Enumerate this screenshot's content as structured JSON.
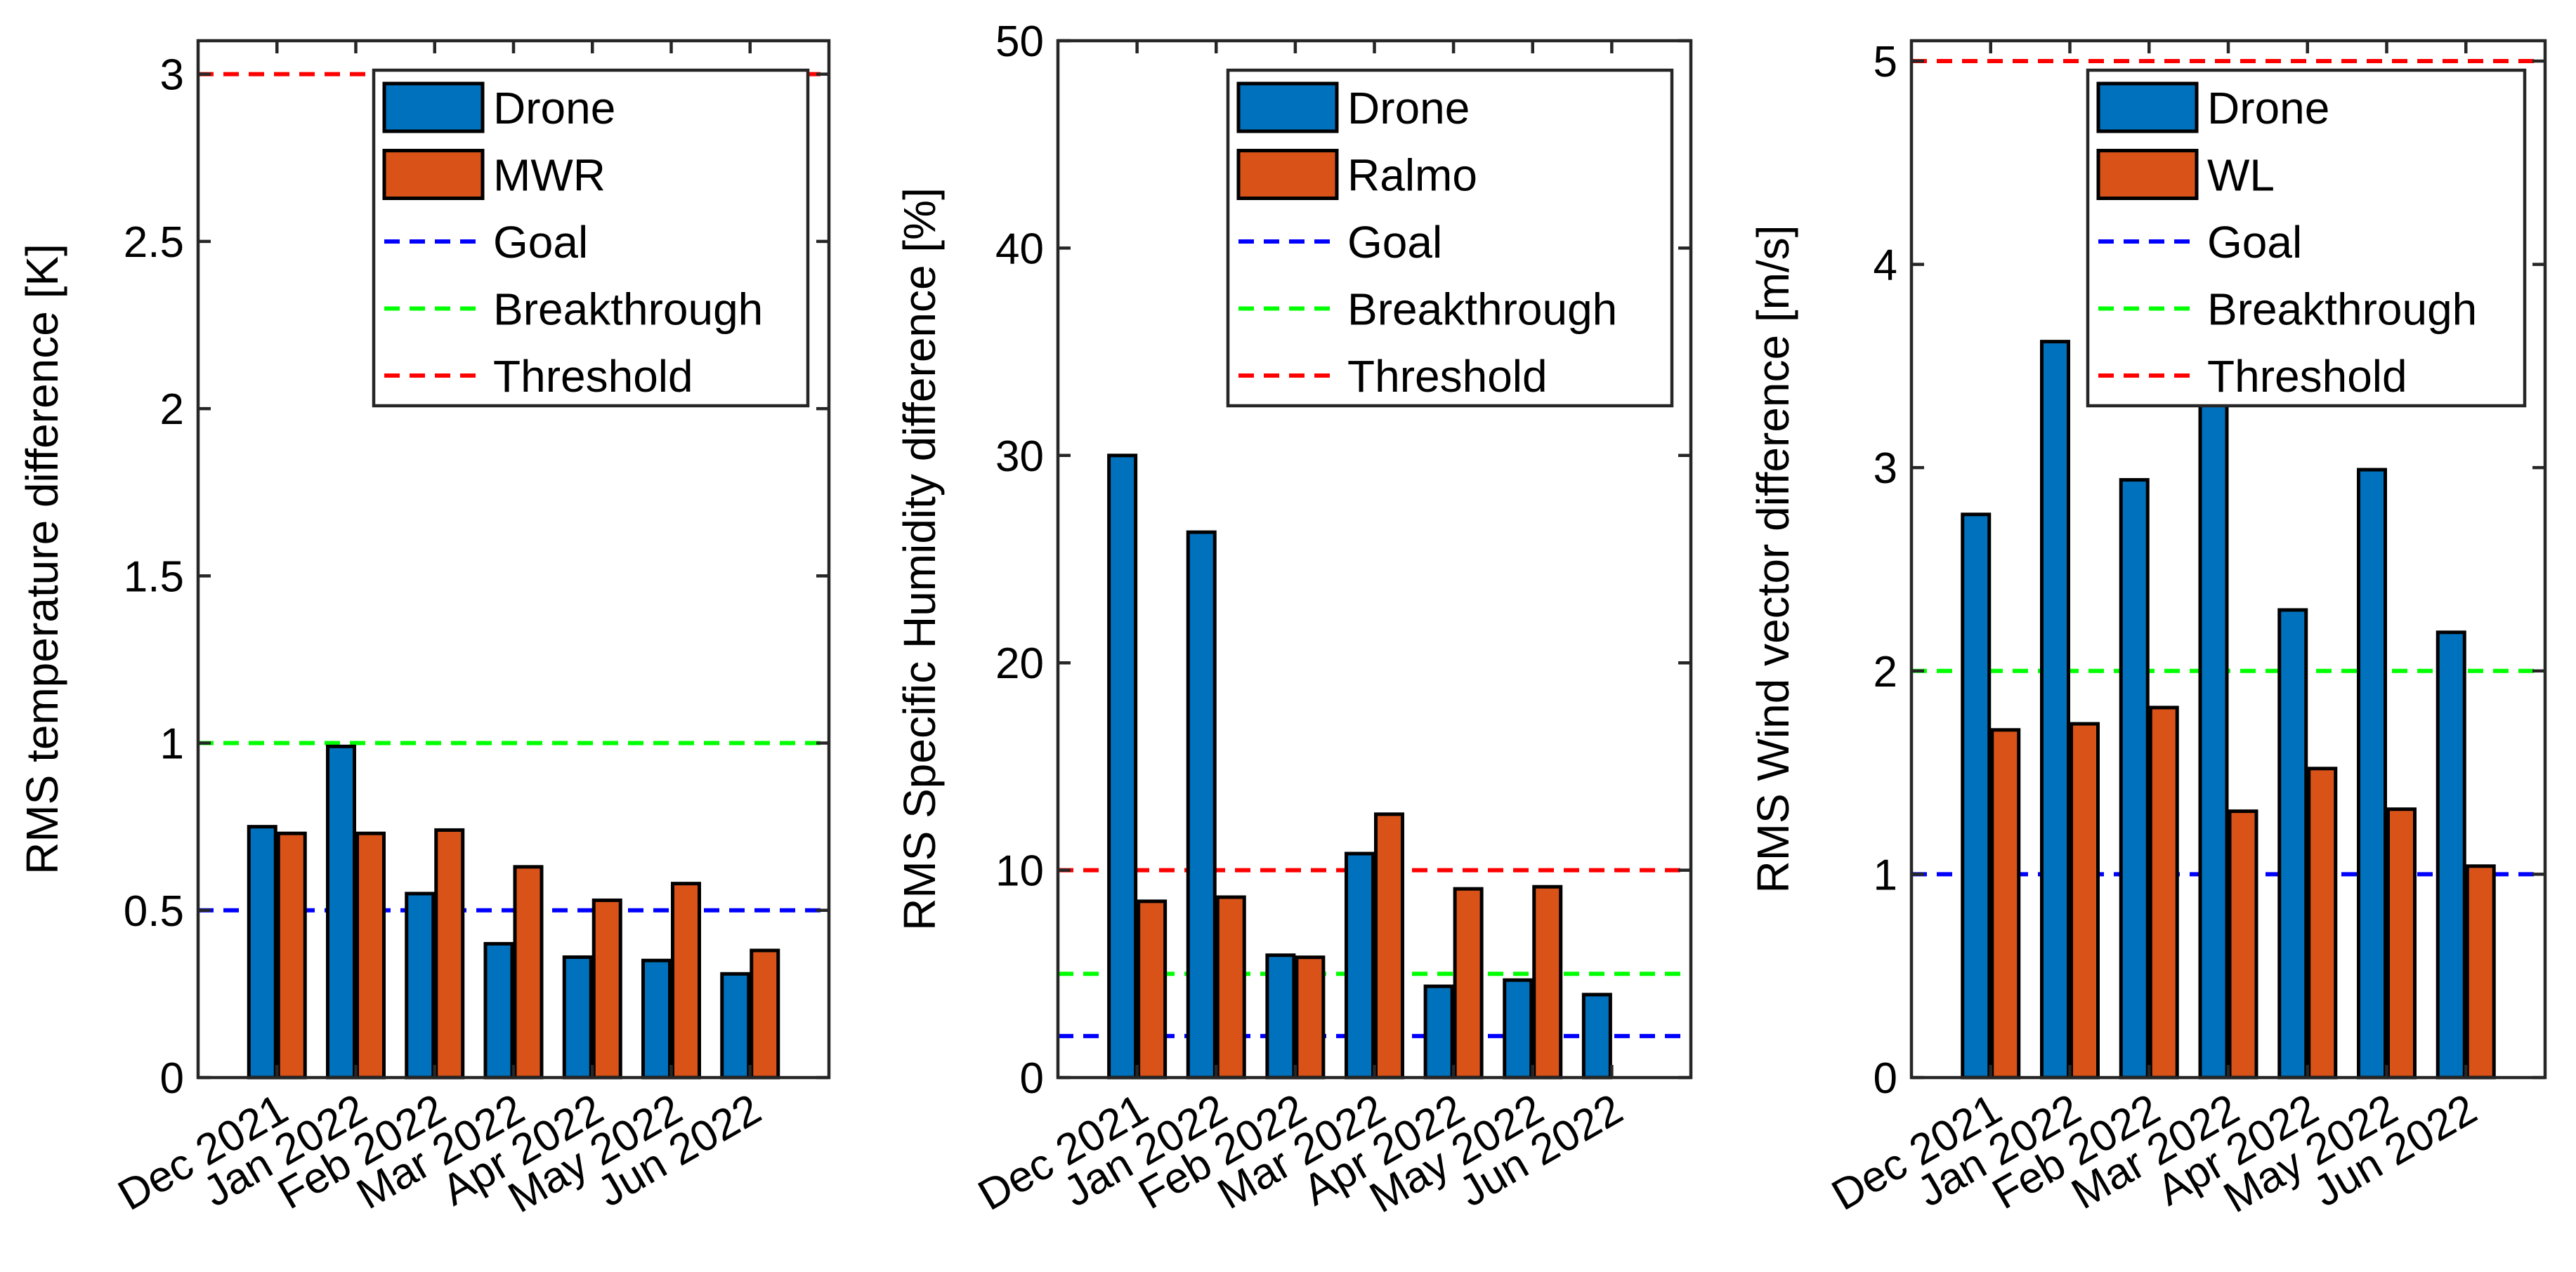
{
  "chart_data": [
    {
      "type": "bar",
      "categories": [
        "Dec 2021",
        "Jan 2022",
        "Feb 2022",
        "Mar 2022",
        "Apr 2022",
        "May 2022",
        "Jun 2022"
      ],
      "series": [
        {
          "name": "Drone",
          "color": "#0072BD",
          "values": [
            0.75,
            0.99,
            0.55,
            0.4,
            0.36,
            0.35,
            0.31
          ]
        },
        {
          "name": "MWR",
          "color": "#D95319",
          "values": [
            0.73,
            0.73,
            0.74,
            0.63,
            0.53,
            0.58,
            0.38
          ]
        }
      ],
      "reference_lines": [
        {
          "name": "Goal",
          "color": "#0000FF",
          "value": 0.5
        },
        {
          "name": "Breakthrough",
          "color": "#00FF00",
          "value": 1.0
        },
        {
          "name": "Threshold",
          "color": "#FF0000",
          "value": 3.0
        }
      ],
      "ylabel": "RMS temperature difference [K]",
      "ylim": [
        0,
        3.1
      ],
      "yticks": [
        0,
        0.5,
        1,
        1.5,
        2,
        2.5,
        3
      ],
      "ytick_labels": [
        "0",
        "0.5",
        "1",
        "1.5",
        "2",
        "2.5",
        "3"
      ],
      "legend": [
        "Drone",
        "MWR",
        "Goal",
        "Breakthrough",
        "Threshold"
      ],
      "legend_position": "top-right"
    },
    {
      "type": "bar",
      "categories": [
        "Dec 2021",
        "Jan 2022",
        "Feb 2022",
        "Mar 2022",
        "Apr 2022",
        "May 2022",
        "Jun 2022"
      ],
      "series": [
        {
          "name": "Drone",
          "color": "#0072BD",
          "values": [
            30.0,
            26.3,
            5.9,
            10.8,
            4.4,
            4.7,
            4.0
          ]
        },
        {
          "name": "Ralmo",
          "color": "#D95319",
          "values": [
            8.5,
            8.7,
            5.8,
            12.7,
            9.1,
            9.2,
            null
          ]
        }
      ],
      "reference_lines": [
        {
          "name": "Goal",
          "color": "#0000FF",
          "value": 2
        },
        {
          "name": "Breakthrough",
          "color": "#00FF00",
          "value": 5
        },
        {
          "name": "Threshold",
          "color": "#FF0000",
          "value": 10
        }
      ],
      "ylabel": "RMS Specific Humidity difference [%]",
      "ylim": [
        0,
        50
      ],
      "yticks": [
        0,
        10,
        20,
        30,
        40,
        50
      ],
      "ytick_labels": [
        "0",
        "10",
        "20",
        "30",
        "40",
        "50"
      ],
      "legend": [
        "Drone",
        "Ralmo",
        "Goal",
        "Breakthrough",
        "Threshold"
      ],
      "legend_position": "top-right"
    },
    {
      "type": "bar",
      "categories": [
        "Dec 2021",
        "Jan 2022",
        "Feb 2022",
        "Mar 2022",
        "Apr 2022",
        "May 2022",
        "Jun 2022"
      ],
      "series": [
        {
          "name": "Drone",
          "color": "#0072BD",
          "values": [
            2.77,
            3.62,
            2.94,
            3.4,
            2.3,
            2.99,
            2.19
          ]
        },
        {
          "name": "WL",
          "color": "#D95319",
          "values": [
            1.71,
            1.74,
            1.82,
            1.31,
            1.52,
            1.32,
            1.04
          ]
        }
      ],
      "reference_lines": [
        {
          "name": "Goal",
          "color": "#0000FF",
          "value": 1
        },
        {
          "name": "Breakthrough",
          "color": "#00FF00",
          "value": 2
        },
        {
          "name": "Threshold",
          "color": "#FF0000",
          "value": 5
        }
      ],
      "ylabel": "RMS Wind vector difference [m/s]",
      "ylim": [
        0,
        5.1
      ],
      "yticks": [
        0,
        1,
        2,
        3,
        4,
        5
      ],
      "ytick_labels": [
        "0",
        "1",
        "2",
        "3",
        "4",
        "5"
      ],
      "legend": [
        "Drone",
        "WL",
        "Goal",
        "Breakthrough",
        "Threshold"
      ],
      "legend_position": "top-right"
    }
  ]
}
